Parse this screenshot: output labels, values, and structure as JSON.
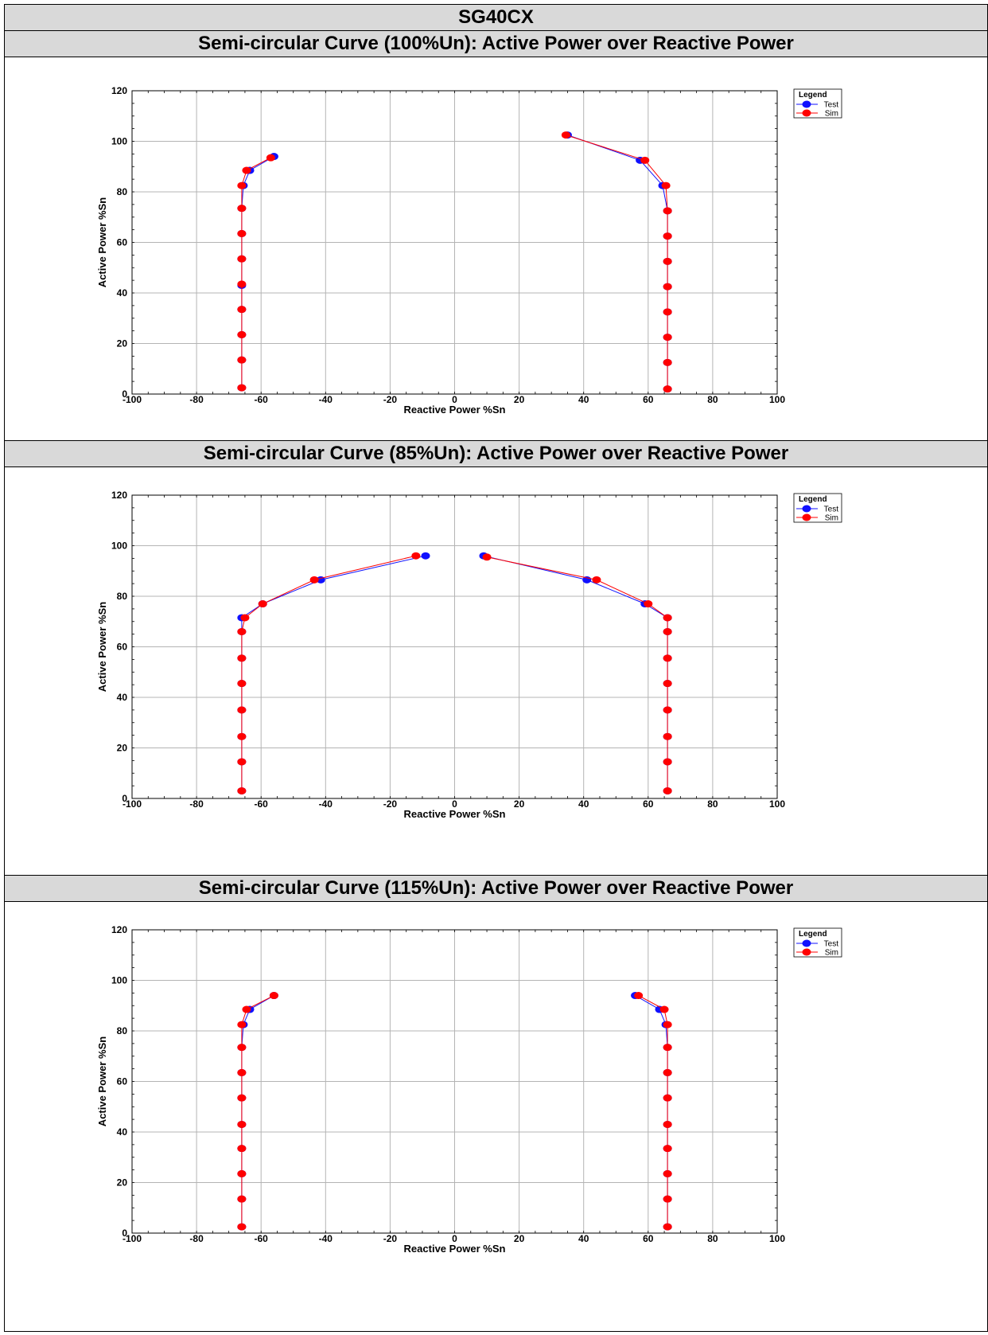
{
  "report": {
    "title": "SG40CX"
  },
  "colors": {
    "test": "#1010ff",
    "sim": "#ff0000",
    "grid": "#b4b4b4",
    "header_bg": "#d9d9d9"
  },
  "chart_data": [
    {
      "type": "line",
      "title": "Semi-circular Curve (100%Un): Active Power over Reactive Power",
      "xlabel": "Reactive Power %Sn",
      "ylabel": "Active Power %Sn",
      "xlim": [
        -100,
        100
      ],
      "ylim": [
        0,
        120
      ],
      "xticks": [
        "-100",
        "-80",
        "-60",
        "-40",
        "-20",
        "0",
        "20",
        "40",
        "60",
        "80",
        "100"
      ],
      "yticks": [
        "0",
        "20",
        "40",
        "60",
        "80",
        "100",
        "120"
      ],
      "grid": true,
      "legend": {
        "title": "Legend",
        "position": "top-right"
      },
      "series": [
        {
          "name": "Test",
          "color": "#1010ff",
          "segments": [
            [
              [
                -66,
                2.5
              ],
              [
                -66,
                13.5
              ],
              [
                -66,
                23.5
              ],
              [
                -66,
                33.5
              ],
              [
                -66,
                43
              ],
              [
                -66,
                53.5
              ],
              [
                -66,
                63.5
              ],
              [
                -66,
                73.5
              ],
              [
                -65.5,
                82.5
              ],
              [
                -63.5,
                88.5
              ],
              [
                -56,
                94
              ]
            ],
            [
              [
                35,
                102.5
              ],
              [
                57.5,
                92.5
              ],
              [
                64.5,
                82.5
              ],
              [
                66,
                72.5
              ],
              [
                66,
                62.5
              ],
              [
                66,
                52.5
              ],
              [
                66,
                42.5
              ],
              [
                66,
                32.5
              ],
              [
                66,
                22.5
              ],
              [
                66,
                12.5
              ],
              [
                66,
                2
              ]
            ]
          ]
        },
        {
          "name": "Sim",
          "color": "#ff0000",
          "segments": [
            [
              [
                -66,
                2.5
              ],
              [
                -66,
                13.5
              ],
              [
                -66,
                23.5
              ],
              [
                -66,
                33.5
              ],
              [
                -66,
                43.5
              ],
              [
                -66,
                53.5
              ],
              [
                -66,
                63.5
              ],
              [
                -66,
                73.5
              ],
              [
                -66,
                82.5
              ],
              [
                -64.5,
                88.5
              ],
              [
                -57,
                93.5
              ]
            ],
            [
              [
                34.5,
                102.5
              ],
              [
                59,
                92.5
              ],
              [
                65.5,
                82.5
              ],
              [
                66,
                72.5
              ],
              [
                66,
                62.5
              ],
              [
                66,
                52.5
              ],
              [
                66,
                42.5
              ],
              [
                66,
                32.5
              ],
              [
                66,
                22.5
              ],
              [
                66,
                12.5
              ],
              [
                66,
                2
              ]
            ]
          ]
        }
      ]
    },
    {
      "type": "line",
      "title": "Semi-circular Curve (85%Un): Active Power over Reactive Power",
      "xlabel": "Reactive Power %Sn",
      "ylabel": "Active Power %Sn",
      "xlim": [
        -100,
        100
      ],
      "ylim": [
        0,
        120
      ],
      "xticks": [
        "-100",
        "-80",
        "-60",
        "-40",
        "-20",
        "0",
        "20",
        "40",
        "60",
        "80",
        "100"
      ],
      "yticks": [
        "0",
        "20",
        "40",
        "60",
        "80",
        "100",
        "120"
      ],
      "grid": true,
      "legend": {
        "title": "Legend",
        "position": "top-right"
      },
      "series": [
        {
          "name": "Test",
          "color": "#1010ff",
          "segments": [
            [
              [
                -66,
                3
              ],
              [
                -66,
                14.5
              ],
              [
                -66,
                24.5
              ],
              [
                -66,
                35
              ],
              [
                -66,
                45.5
              ],
              [
                -66,
                55.5
              ],
              [
                -66,
                66
              ],
              [
                -66,
                71.5
              ],
              [
                -59.5,
                77
              ],
              [
                -41.5,
                86.5
              ],
              [
                -9,
                96
              ]
            ],
            [
              [
                9,
                96
              ],
              [
                41,
                86.5
              ],
              [
                59,
                77
              ],
              [
                66,
                71.5
              ],
              [
                66,
                66
              ],
              [
                66,
                55.5
              ],
              [
                66,
                45.5
              ],
              [
                66,
                35
              ],
              [
                66,
                24.5
              ],
              [
                66,
                14.5
              ],
              [
                66,
                3
              ]
            ]
          ]
        },
        {
          "name": "Sim",
          "color": "#ff0000",
          "segments": [
            [
              [
                -66,
                3
              ],
              [
                -66,
                14.5
              ],
              [
                -66,
                24.5
              ],
              [
                -66,
                35
              ],
              [
                -66,
                45.5
              ],
              [
                -66,
                55.5
              ],
              [
                -66,
                66
              ],
              [
                -65,
                71.5
              ],
              [
                -59.5,
                77
              ],
              [
                -43.5,
                86.5
              ],
              [
                -12,
                96
              ]
            ],
            [
              [
                10,
                95.5
              ],
              [
                44,
                86.5
              ],
              [
                60,
                77
              ],
              [
                66,
                71.5
              ],
              [
                66,
                66
              ],
              [
                66,
                55.5
              ],
              [
                66,
                45.5
              ],
              [
                66,
                35
              ],
              [
                66,
                24.5
              ],
              [
                66,
                14.5
              ],
              [
                66,
                3
              ]
            ]
          ]
        }
      ]
    },
    {
      "type": "line",
      "title": "Semi-circular Curve (115%Un): Active Power over Reactive Power",
      "xlabel": "Reactive Power %Sn",
      "ylabel": "Active Power %Sn",
      "xlim": [
        -100,
        100
      ],
      "ylim": [
        0,
        120
      ],
      "xticks": [
        "-100",
        "-80",
        "-60",
        "-40",
        "-20",
        "0",
        "20",
        "40",
        "60",
        "80",
        "100"
      ],
      "yticks": [
        "0",
        "20",
        "40",
        "60",
        "80",
        "100",
        "120"
      ],
      "grid": true,
      "legend": {
        "title": "Legend",
        "position": "top-right"
      },
      "series": [
        {
          "name": "Test",
          "color": "#1010ff",
          "segments": [
            [
              [
                -66,
                2.5
              ],
              [
                -66,
                13.5
              ],
              [
                -66,
                23.5
              ],
              [
                -66,
                33.5
              ],
              [
                -66,
                43
              ],
              [
                -66,
                53.5
              ],
              [
                -66,
                63.5
              ],
              [
                -66,
                73.5
              ],
              [
                -65.5,
                82.5
              ],
              [
                -63.5,
                88.5
              ],
              [
                -56,
                94
              ]
            ],
            [
              [
                56,
                94
              ],
              [
                63.5,
                88.5
              ],
              [
                65.5,
                82.5
              ],
              [
                66,
                73.5
              ],
              [
                66,
                63.5
              ],
              [
                66,
                53.5
              ],
              [
                66,
                43
              ],
              [
                66,
                33.5
              ],
              [
                66,
                23.5
              ],
              [
                66,
                13.5
              ],
              [
                66,
                2.5
              ]
            ]
          ]
        },
        {
          "name": "Sim",
          "color": "#ff0000",
          "segments": [
            [
              [
                -66,
                2.5
              ],
              [
                -66,
                13.5
              ],
              [
                -66,
                23.5
              ],
              [
                -66,
                33.5
              ],
              [
                -66,
                43
              ],
              [
                -66,
                53.5
              ],
              [
                -66,
                63.5
              ],
              [
                -66,
                73.5
              ],
              [
                -66,
                82.5
              ],
              [
                -64.5,
                88.5
              ],
              [
                -56,
                94
              ]
            ],
            [
              [
                57,
                94
              ],
              [
                65,
                88.5
              ],
              [
                66,
                82.5
              ],
              [
                66,
                73.5
              ],
              [
                66,
                63.5
              ],
              [
                66,
                53.5
              ],
              [
                66,
                43
              ],
              [
                66,
                33.5
              ],
              [
                66,
                23.5
              ],
              [
                66,
                13.5
              ],
              [
                66,
                2.5
              ]
            ]
          ]
        }
      ]
    }
  ]
}
